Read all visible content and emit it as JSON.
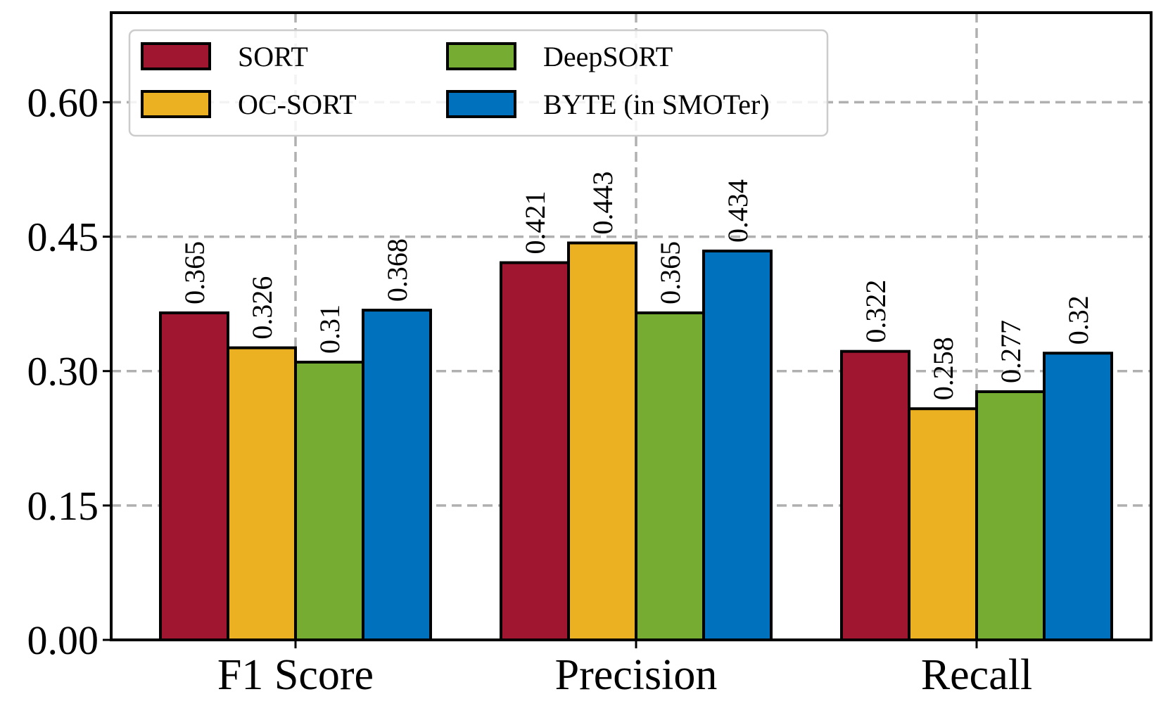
{
  "chart_data": {
    "type": "bar",
    "title": "",
    "xlabel": "",
    "ylabel": "",
    "categories": [
      "F1 Score",
      "Precision",
      "Recall"
    ],
    "series": [
      {
        "name": "SORT",
        "color": "#a0152f",
        "values": [
          0.365,
          0.421,
          0.322
        ],
        "labels": [
          "0.365",
          "0.421",
          "0.322"
        ]
      },
      {
        "name": "OC-SORT",
        "color": "#ecb023",
        "values": [
          0.326,
          0.443,
          0.258
        ],
        "labels": [
          "0.326",
          "0.443",
          "0.258"
        ]
      },
      {
        "name": "DeepSORT",
        "color": "#76ac32",
        "values": [
          0.31,
          0.365,
          0.277
        ],
        "labels": [
          "0.31",
          "0.365",
          "0.277"
        ]
      },
      {
        "name": "BYTE (in SMOTer)",
        "color": "#0072bd",
        "values": [
          0.368,
          0.434,
          0.32
        ],
        "labels": [
          "0.368",
          "0.434",
          "0.32"
        ]
      }
    ],
    "ylim": [
      0,
      0.7
    ],
    "yticks": [
      0,
      0.15,
      0.3,
      0.45,
      0.6
    ],
    "ytick_labels": [
      "0.00",
      "0.15",
      "0.30",
      "0.45",
      "0.60"
    ],
    "grid": true,
    "legend": {
      "position": "upper-left",
      "columns": 2
    }
  }
}
